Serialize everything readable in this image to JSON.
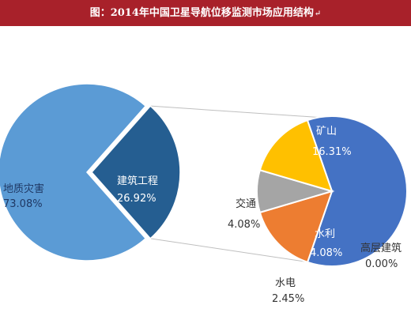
{
  "title": "图：2014年中国卫星导航位移监测市场应用结构",
  "title_mark": "↵",
  "colors": {
    "title_bg": "#a8212a",
    "geo_hazard": "#5b9bd5",
    "construction": "#255e91",
    "mining": "#4472c4",
    "water": "#ed7d31",
    "hydro": "#a5a5a5",
    "transport": "#ffc000",
    "high_rise": "#5a8f3a",
    "connector": "#bfbfbf"
  },
  "chart_data": [
    {
      "type": "pie",
      "title": "",
      "slices": [
        {
          "label": "地质灾害",
          "value": 73.08,
          "value_text": "73.08%"
        },
        {
          "label": "建筑工程",
          "value": 26.92,
          "value_text": "26.92%"
        }
      ]
    },
    {
      "type": "pie",
      "title": "",
      "slices": [
        {
          "label": "矿山",
          "value": 16.31,
          "value_text": "16.31%"
        },
        {
          "label": "高层建筑",
          "value": 0.0,
          "value_text": "0.00%"
        },
        {
          "label": "水利",
          "value": 4.08,
          "value_text": "4.08%"
        },
        {
          "label": "水电",
          "value": 2.45,
          "value_text": "2.45%"
        },
        {
          "label": "交通",
          "value": 4.08,
          "value_text": "4.08%"
        }
      ]
    }
  ]
}
